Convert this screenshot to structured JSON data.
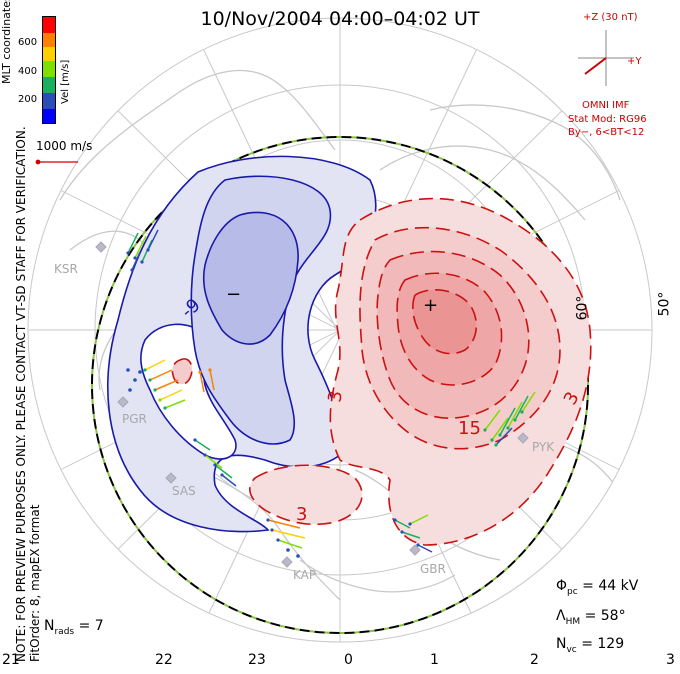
{
  "title": "10/Nov/2004 04:00–04:02 UT",
  "side_note_line1": "NOTE: FOR PREVIEW PURPOSES ONLY. PLEASE CONTACT VT-SD STAFF FOR VERIFICATION.",
  "side_note_line2": "FitOrder: 8, mapEX format",
  "coordinate_system": "MLT coordinates",
  "colorbar": {
    "unit_label": "Vel [m/s]",
    "ticks": [
      "600",
      "400",
      "200"
    ],
    "colors": [
      "#ff0000",
      "#ff7f00",
      "#ffd000",
      "#7fdf00",
      "#18b060",
      "#2a4eb8",
      "#0000ff"
    ]
  },
  "vector_scale_label": "1000 m/s",
  "imf": {
    "z_label": "+Z (30 nT)",
    "y_label": "+Y",
    "source": "OMNI IMF",
    "stat_model": "Stat Mod: RG96",
    "condition": "By−, 6<BT<12"
  },
  "stats": {
    "phi_pc": "Φ",
    "phi_pc_sub": "pc",
    "phi_pc_value": "= 44 kV",
    "lambda_hm": "Λ",
    "lambda_hm_sub": "HM",
    "lambda_hm_value": "= 58°",
    "n_vc": "N",
    "n_vc_sub": "vc",
    "n_vc_value": "= 129",
    "n_rads": "N",
    "n_rads_sub": "rads",
    "n_rads_value": "= 7"
  },
  "mlt_ticks": [
    "21",
    "22",
    "23",
    "0",
    "1",
    "2",
    "3"
  ],
  "latitude_labels": [
    "60°",
    "50°"
  ],
  "radars": [
    "KSR",
    "PGR",
    "SAS",
    "KAP",
    "GBR",
    "PYK"
  ],
  "contour_labels": [
    "-9",
    "3",
    "15",
    "3",
    "3"
  ],
  "cell_markers": {
    "minimum": "−",
    "maximum": "+"
  },
  "colors": {
    "negative_cell": "#1a1aaa",
    "positive_cell": "#cc1111",
    "coastline": "#c8c8c8",
    "boundary": "#86c53c"
  }
}
